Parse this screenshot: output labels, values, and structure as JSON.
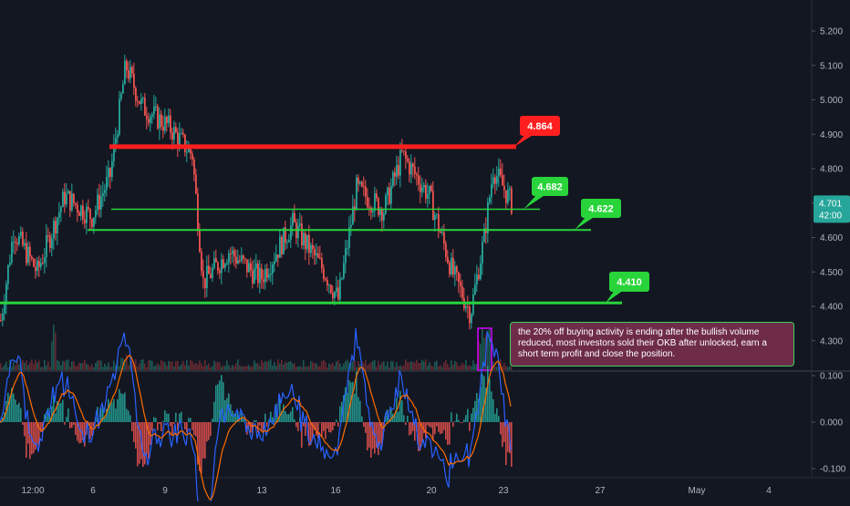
{
  "chart_data": [
    {
      "type": "candlestick",
      "title": "",
      "y_axis": {
        "ticks": [
          "5.200",
          "5.100",
          "5.000",
          "4.900",
          "4.800",
          "4.700",
          "4.600",
          "4.500",
          "4.400",
          "4.300"
        ],
        "ylim": [
          4.268,
          5.228
        ]
      },
      "x_axis": {
        "ticks": [
          "12:00",
          "6",
          "9",
          "13",
          "16",
          "20",
          "23",
          "27",
          "May",
          "4"
        ]
      },
      "last_price": "4.701",
      "countdown": "42:00",
      "levels": [
        {
          "label": "4.864",
          "value": 4.864,
          "color": "#ff1f1f"
        },
        {
          "label": "4.682",
          "value": 4.682,
          "color": "#28d43a"
        },
        {
          "label": "4.622",
          "value": 4.622,
          "color": "#28d43a"
        },
        {
          "label": "4.410",
          "value": 4.41,
          "color": "#28d43a"
        }
      ],
      "close_path_key_points": [
        [
          0,
          4.36
        ],
        [
          14,
          4.62
        ],
        [
          40,
          4.5
        ],
        [
          70,
          4.72
        ],
        [
          100,
          4.66
        ],
        [
          120,
          4.78
        ],
        [
          137,
          5.1
        ],
        [
          155,
          4.98
        ],
        [
          185,
          4.92
        ],
        [
          210,
          4.84
        ],
        [
          222,
          4.47
        ],
        [
          250,
          4.56
        ],
        [
          285,
          4.48
        ],
        [
          320,
          4.64
        ],
        [
          355,
          4.5
        ],
        [
          370,
          4.42
        ],
        [
          390,
          4.74
        ],
        [
          420,
          4.68
        ],
        [
          440,
          4.84
        ],
        [
          470,
          4.72
        ],
        [
          495,
          4.5
        ],
        [
          515,
          4.38
        ],
        [
          530,
          4.6
        ],
        [
          540,
          4.8
        ],
        [
          560,
          4.7
        ]
      ],
      "annotation": "the 20% off buying activity is ending after the bullish volume reduced, most investors sold their OKB after unlocked, earn a short term profit and close the position."
    },
    {
      "type": "macd",
      "y_axis": {
        "ticks": [
          "0.100",
          "0.000",
          "-0.100"
        ],
        "ylim": [
          -0.115,
          0.115
        ]
      }
    }
  ],
  "colors": {
    "background": "#131722",
    "up": "#26a69a",
    "down": "#ef5350",
    "resistance": "#ff1f1f",
    "support": "#28d43a",
    "macd_line": "#2962ff",
    "signal_line": "#ff6d00",
    "annotation_bg": "#6e2c49",
    "annotation_border": "#3fd15a",
    "highlight_box": "#d500f9"
  }
}
